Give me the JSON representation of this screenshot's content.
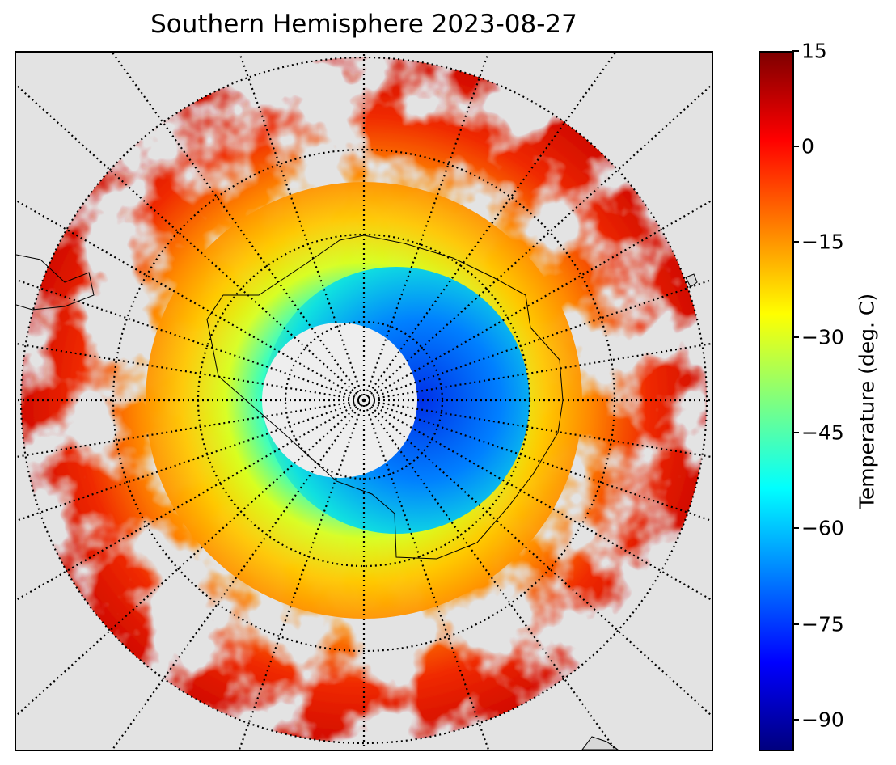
{
  "title": "Southern Hemisphere 2023-08-27",
  "map": {
    "projection": "south polar stereographic",
    "background_color": "#e3e3e3",
    "coastline_color": "#000000",
    "graticule_style": "dotted black",
    "meridian_spacing_deg": 10,
    "parallel_spacing_deg": 10,
    "center_nodata_color": "#eeeeee"
  },
  "colorbar": {
    "label": "Temperature (deg. C)",
    "colormap": "jet",
    "min": -95,
    "max": 15,
    "ticks": [
      "15",
      "0",
      "−15",
      "−30",
      "−45",
      "−60",
      "−75",
      "−90"
    ],
    "tick_values": [
      15,
      0,
      -15,
      -30,
      -45,
      -60,
      -75,
      -90
    ],
    "colors": [
      "#00007f",
      "#0000ff",
      "#007fff",
      "#00ffff",
      "#7fff7f",
      "#ffff00",
      "#ff7f00",
      "#ff0000",
      "#7f0000"
    ]
  }
}
